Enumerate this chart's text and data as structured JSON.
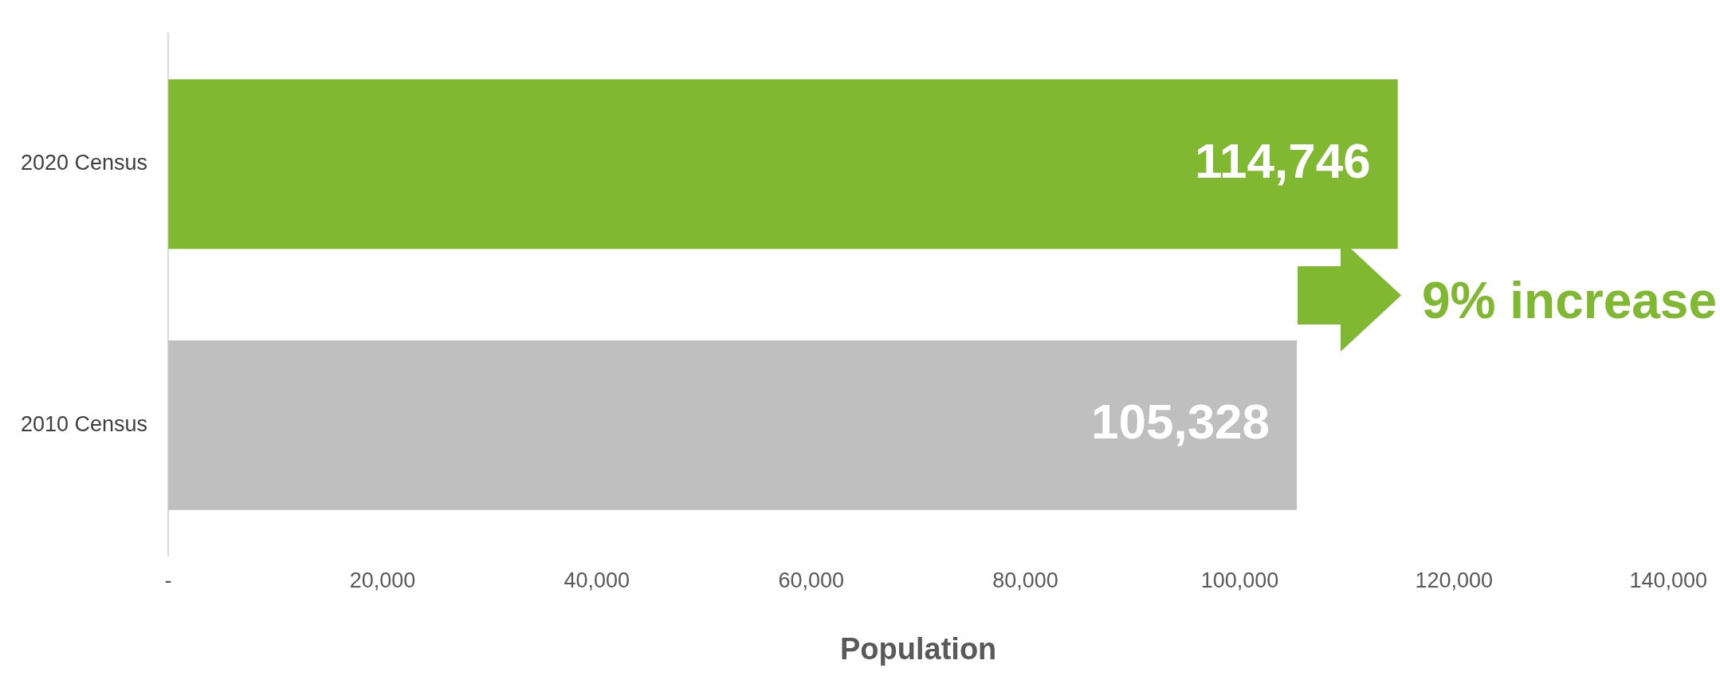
{
  "chart_data": {
    "type": "bar",
    "orientation": "horizontal",
    "xlabel": "Population",
    "categories": [
      "2020 Census",
      "2010 Census"
    ],
    "values": [
      114746,
      105328
    ],
    "colors": [
      "#80b832",
      "#bfbfbf"
    ],
    "value_labels": [
      "114,746",
      "105,328"
    ],
    "xlim": [
      0,
      140000
    ],
    "xticks": [
      {
        "value": 0,
        "label": "-"
      },
      {
        "value": 20000,
        "label": "20,000"
      },
      {
        "value": 40000,
        "label": "40,000"
      },
      {
        "value": 60000,
        "label": "60,000"
      },
      {
        "value": 80000,
        "label": "80,000"
      },
      {
        "value": 100000,
        "label": "100,000"
      },
      {
        "value": 120000,
        "label": "120,000"
      },
      {
        "value": 140000,
        "label": "140,000"
      }
    ],
    "annotations": [
      "9% increase"
    ],
    "grid": false,
    "legend": false
  }
}
